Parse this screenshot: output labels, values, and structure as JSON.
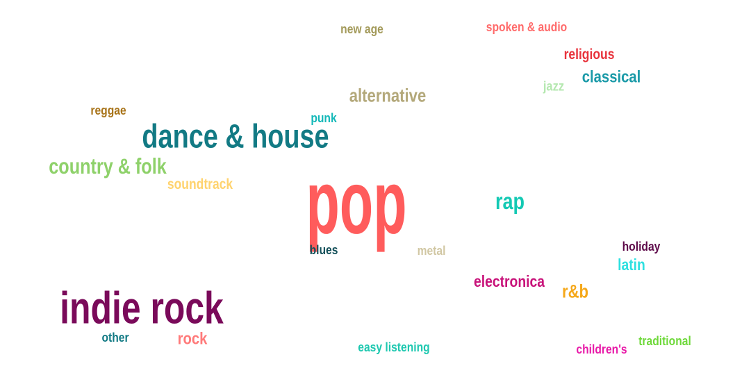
{
  "chart_data": {
    "type": "wordcloud",
    "words": [
      {
        "text": "pop",
        "weight": 100,
        "color": "#ff5c5c"
      },
      {
        "text": "indie rock",
        "weight": 52,
        "color": "#7a0a5a"
      },
      {
        "text": "dance & house",
        "weight": 42,
        "color": "#127a84"
      },
      {
        "text": "country & folk",
        "weight": 26,
        "color": "#8ed16a"
      },
      {
        "text": "alternative",
        "weight": 22,
        "color": "#b3a87a"
      },
      {
        "text": "rap",
        "weight": 26,
        "color": "#14c9b4"
      },
      {
        "text": "classical",
        "weight": 20,
        "color": "#1a9aa8"
      },
      {
        "text": "religious",
        "weight": 17,
        "color": "#e8333c"
      },
      {
        "text": "spoken & audio",
        "weight": 16,
        "color": "#ff6b6b"
      },
      {
        "text": "new age",
        "weight": 16,
        "color": "#a39a5a"
      },
      {
        "text": "jazz",
        "weight": 16,
        "color": "#b5e8b0"
      },
      {
        "text": "reggae",
        "weight": 16,
        "color": "#a8741a"
      },
      {
        "text": "punk",
        "weight": 16,
        "color": "#13b8b8"
      },
      {
        "text": "soundtrack",
        "weight": 18,
        "color": "#ffd36e"
      },
      {
        "text": "blues",
        "weight": 16,
        "color": "#14505a"
      },
      {
        "text": "metal",
        "weight": 16,
        "color": "#d1c7a3"
      },
      {
        "text": "holiday",
        "weight": 16,
        "color": "#5e0a4a"
      },
      {
        "text": "latin",
        "weight": 20,
        "color": "#2ee0e0"
      },
      {
        "text": "electronica",
        "weight": 20,
        "color": "#c8137a"
      },
      {
        "text": "r&b",
        "weight": 22,
        "color": "#f5a81a"
      },
      {
        "text": "rock",
        "weight": 20,
        "color": "#ff7a7a"
      },
      {
        "text": "other",
        "weight": 16,
        "color": "#127a84"
      },
      {
        "text": "easy listening",
        "weight": 16,
        "color": "#1ec8b0"
      },
      {
        "text": "children's",
        "weight": 16,
        "color": "#e81aa8"
      },
      {
        "text": "traditional",
        "weight": 16,
        "color": "#6ed83a"
      }
    ]
  }
}
